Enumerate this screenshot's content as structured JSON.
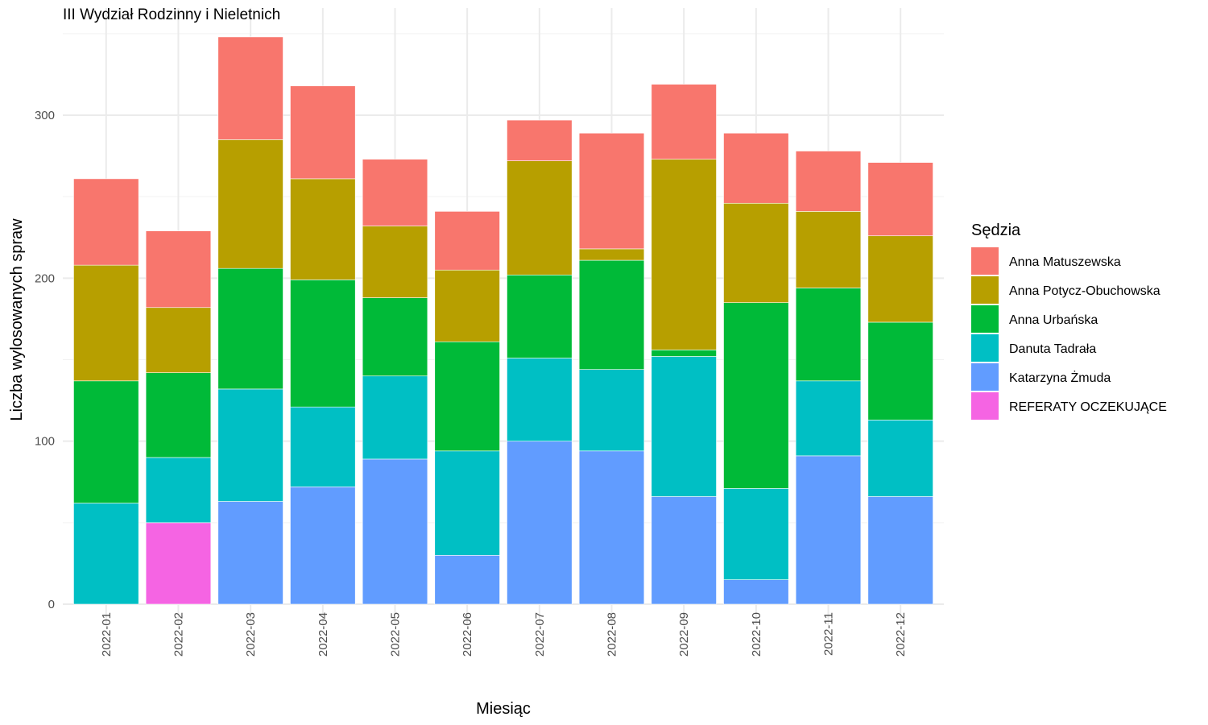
{
  "chart_data": {
    "type": "bar",
    "stacked": true,
    "title": "III Wydział Rodzinny i Nieletnich",
    "xlabel": "Miesiąc",
    "ylabel": "Liczba wylosowanych spraw",
    "ylim": [
      0,
      350
    ],
    "yticks": [
      0,
      100,
      200,
      300
    ],
    "grid": true,
    "legend_title": "Sędzia",
    "legend_position": "right",
    "categories": [
      "2022-01",
      "2022-02",
      "2022-03",
      "2022-04",
      "2022-05",
      "2022-06",
      "2022-07",
      "2022-08",
      "2022-09",
      "2022-10",
      "2022-11",
      "2022-12"
    ],
    "series": [
      {
        "name": "REFERATY OCZEKUJĄCE",
        "color": "#F564E3",
        "values": [
          0,
          50,
          0,
          0,
          0,
          0,
          0,
          0,
          0,
          0,
          0,
          0
        ]
      },
      {
        "name": "Katarzyna Żmuda",
        "color": "#619CFF",
        "values": [
          0,
          0,
          63,
          72,
          89,
          30,
          100,
          94,
          66,
          15,
          91,
          66
        ]
      },
      {
        "name": "Danuta Tadrała",
        "color": "#00BFC4",
        "values": [
          62,
          40,
          69,
          49,
          51,
          64,
          51,
          50,
          86,
          56,
          46,
          47
        ]
      },
      {
        "name": "Anna Urbańska",
        "color": "#00BA38",
        "values": [
          75,
          52,
          74,
          78,
          48,
          67,
          51,
          67,
          4,
          114,
          57,
          60
        ]
      },
      {
        "name": "Anna Potycz-Obuchowska",
        "color": "#B79F00",
        "values": [
          71,
          40,
          79,
          62,
          44,
          44,
          70,
          7,
          117,
          61,
          47,
          53
        ]
      },
      {
        "name": "Anna Matuszewska",
        "color": "#F8766D",
        "values": [
          53,
          47,
          63,
          57,
          41,
          36,
          25,
          71,
          46,
          43,
          37,
          45
        ]
      }
    ],
    "legend_order": [
      "Anna Matuszewska",
      "Anna Potycz-Obuchowska",
      "Anna Urbańska",
      "Danuta Tadrała",
      "Katarzyna Żmuda",
      "REFERATY OCZEKUJĄCE"
    ]
  }
}
